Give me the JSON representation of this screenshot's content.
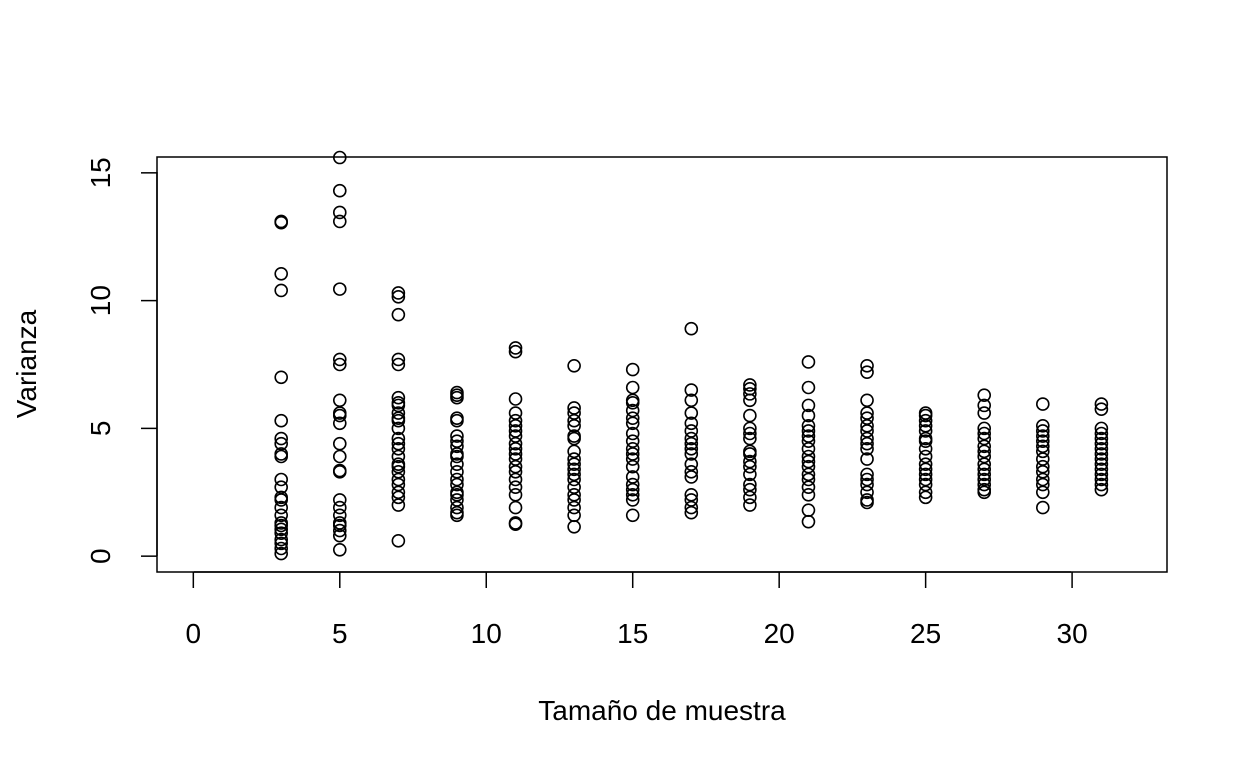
{
  "chart_data": {
    "type": "scatter",
    "title": "",
    "xlabel": "Tamaño de muestra",
    "ylabel": "Varianza",
    "xlim": [
      -1.24,
      33.24
    ],
    "ylim": [
      -0.62,
      15.62
    ],
    "xticks": [
      "0",
      "5",
      "10",
      "15",
      "20",
      "25",
      "30"
    ],
    "yticks": [
      "0",
      "5",
      "10",
      "15"
    ],
    "grid": false,
    "legend": "none",
    "marker": "open-circle",
    "series": [
      {
        "points": [
          {
            "x": 3,
            "y": [
              13.1,
              13.05,
              11.05,
              10.4,
              7.0,
              5.3,
              4.6,
              4.4,
              4.0,
              3.9,
              3.0,
              2.7,
              2.3,
              2.2,
              1.9,
              1.6,
              1.3,
              1.2,
              1.05,
              0.9,
              0.65,
              0.5,
              0.3,
              0.1
            ]
          },
          {
            "x": 5,
            "y": [
              15.6,
              14.3,
              13.45,
              13.1,
              10.45,
              7.7,
              7.5,
              6.1,
              5.6,
              5.5,
              5.2,
              4.4,
              3.9,
              3.35,
              3.3,
              2.2,
              1.9,
              1.6,
              1.3,
              1.2,
              1.0,
              0.8,
              0.25
            ]
          },
          {
            "x": 7,
            "y": [
              10.3,
              10.15,
              9.45,
              7.7,
              7.5,
              6.2,
              6.0,
              5.9,
              5.6,
              5.4,
              5.3,
              5.0,
              4.6,
              4.4,
              4.2,
              3.9,
              3.6,
              3.5,
              3.3,
              3.0,
              2.8,
              2.5,
              2.3,
              2.0,
              0.6
            ]
          },
          {
            "x": 9,
            "y": [
              6.4,
              6.3,
              6.2,
              5.4,
              5.3,
              4.7,
              4.5,
              4.3,
              4.0,
              3.9,
              3.6,
              3.3,
              3.0,
              2.8,
              2.5,
              2.4,
              2.2,
              1.9,
              1.7,
              1.6
            ]
          },
          {
            "x": 11,
            "y": [
              8.15,
              8.0,
              6.15,
              5.6,
              5.3,
              5.1,
              4.9,
              4.7,
              4.4,
              4.2,
              4.0,
              3.8,
              3.5,
              3.3,
              3.0,
              2.7,
              2.4,
              1.9,
              1.3,
              1.25
            ]
          },
          {
            "x": 13,
            "y": [
              7.45,
              5.8,
              5.6,
              5.3,
              5.1,
              4.7,
              4.6,
              4.1,
              3.8,
              3.6,
              3.4,
              3.2,
              3.0,
              2.7,
              2.4,
              2.2,
              1.9,
              1.6,
              1.15
            ]
          },
          {
            "x": 15,
            "y": [
              7.3,
              6.6,
              6.1,
              6.0,
              5.7,
              5.4,
              5.2,
              4.8,
              4.5,
              4.2,
              4.0,
              3.8,
              3.5,
              3.1,
              2.8,
              2.6,
              2.4,
              2.2,
              1.6
            ]
          },
          {
            "x": 17,
            "y": [
              8.9,
              6.5,
              6.1,
              5.6,
              5.2,
              4.9,
              4.6,
              4.4,
              4.2,
              4.0,
              3.6,
              3.3,
              3.1,
              2.4,
              2.2,
              1.9,
              1.7
            ]
          },
          {
            "x": 19,
            "y": [
              6.7,
              6.55,
              6.35,
              6.1,
              5.5,
              5.0,
              4.8,
              4.6,
              4.1,
              4.0,
              3.7,
              3.5,
              3.2,
              2.8,
              2.6,
              2.3,
              2.0
            ]
          },
          {
            "x": 21,
            "y": [
              7.6,
              6.6,
              5.9,
              5.5,
              5.1,
              4.9,
              4.7,
              4.5,
              4.2,
              3.9,
              3.7,
              3.5,
              3.2,
              3.0,
              2.7,
              2.4,
              1.8,
              1.35
            ]
          },
          {
            "x": 23,
            "y": [
              7.45,
              7.2,
              6.1,
              5.6,
              5.4,
              5.1,
              4.9,
              4.6,
              4.4,
              4.2,
              3.8,
              3.2,
              3.0,
              2.8,
              2.5,
              2.2,
              2.1
            ]
          },
          {
            "x": 25,
            "y": [
              5.6,
              5.5,
              5.3,
              5.1,
              4.9,
              4.6,
              4.5,
              4.2,
              3.9,
              3.6,
              3.4,
              3.2,
              3.0,
              2.8,
              2.5,
              2.3
            ]
          },
          {
            "x": 27,
            "y": [
              6.3,
              5.9,
              5.6,
              5.0,
              4.8,
              4.6,
              4.3,
              4.1,
              3.9,
              3.6,
              3.4,
              3.2,
              3.0,
              2.8,
              2.6,
              2.5
            ]
          },
          {
            "x": 29,
            "y": [
              5.95,
              5.1,
              4.9,
              4.7,
              4.5,
              4.3,
              4.1,
              3.8,
              3.5,
              3.3,
              3.0,
              2.8,
              2.5,
              1.9
            ]
          },
          {
            "x": 31,
            "y": [
              5.95,
              5.75,
              5.0,
              4.8,
              4.6,
              4.4,
              4.2,
              4.0,
              3.8,
              3.6,
              3.4,
              3.2,
              3.0,
              2.8,
              2.6
            ]
          }
        ]
      }
    ]
  }
}
